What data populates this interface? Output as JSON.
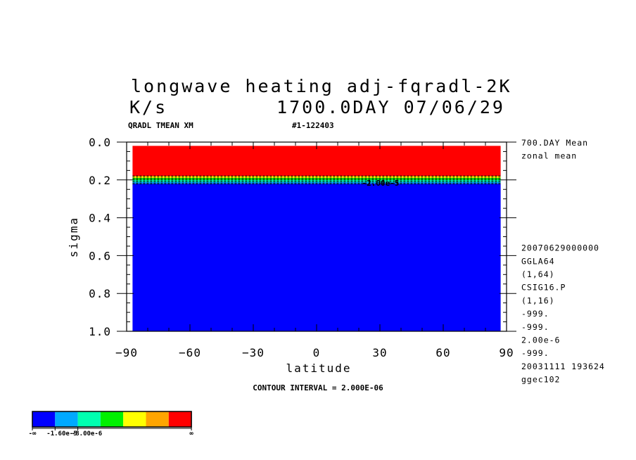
{
  "title_line1": "longwave heating adj-fqradl-2K",
  "title_units": "K/s",
  "title_date": "1700.0DAY 07/06/29",
  "header_left": "QRADL TMEAN XM",
  "header_right": "#1-122403",
  "contour_note": "CONTOUR INTERVAL = 2.000E-06",
  "contour_label": "-2.00e-5",
  "side_info": [
    "700.DAY Mean",
    "zonal mean",
    "",
    "",
    "",
    "",
    "",
    "",
    "20070629000000",
    "GGLA64",
    "(1,64)",
    "CSIG16.P",
    "(1,16)",
    "-999.",
    "-999.",
    "2.00e-6",
    "-999.",
    "20031111 193624",
    "ggec102"
  ],
  "colorbar": {
    "colors": [
      "#0000ff",
      "#00a9ff",
      "#00ffb0",
      "#00f000",
      "#ffff00",
      "#ffa500",
      "#ff0000"
    ],
    "labels": [
      "-∞",
      "-1.60e-5",
      "-8.00e-6",
      "∞"
    ]
  },
  "chart_data": {
    "type": "heatmap",
    "xlabel": "latitude",
    "ylabel": "sigma",
    "xlim": [
      -90,
      90
    ],
    "ylim": [
      1.0,
      0.0
    ],
    "xticks": [
      -90,
      -60,
      -30,
      0,
      30,
      60,
      90
    ],
    "xtick_labels": [
      "−90",
      "−60",
      "−30",
      "0",
      "30",
      "60",
      "90"
    ],
    "yticks": [
      0.0,
      0.2,
      0.4,
      0.6,
      0.8,
      1.0
    ],
    "ytick_labels": [
      "0.0",
      "0.2",
      "0.4",
      "0.6",
      "0.8",
      "1.0"
    ],
    "levels": [
      {
        "sigma_top": 0.02,
        "sigma_bottom": 0.18,
        "color": "#ff0000"
      },
      {
        "sigma_top": 0.18,
        "sigma_bottom": 0.19,
        "color": "#ffff00"
      },
      {
        "sigma_top": 0.19,
        "sigma_bottom": 0.2,
        "color": "#00f000"
      },
      {
        "sigma_top": 0.2,
        "sigma_bottom": 0.21,
        "color": "#00ffb0"
      },
      {
        "sigma_top": 0.21,
        "sigma_bottom": 0.22,
        "color": "#00a9ff"
      },
      {
        "sigma_top": 0.22,
        "sigma_bottom": 1.0,
        "color": "#0000ff"
      }
    ],
    "contour_sigmas": [
      0.18,
      0.19,
      0.2,
      0.21,
      0.22
    ],
    "contour_label_lat": 22,
    "contour_label_sigma": 0.205
  }
}
